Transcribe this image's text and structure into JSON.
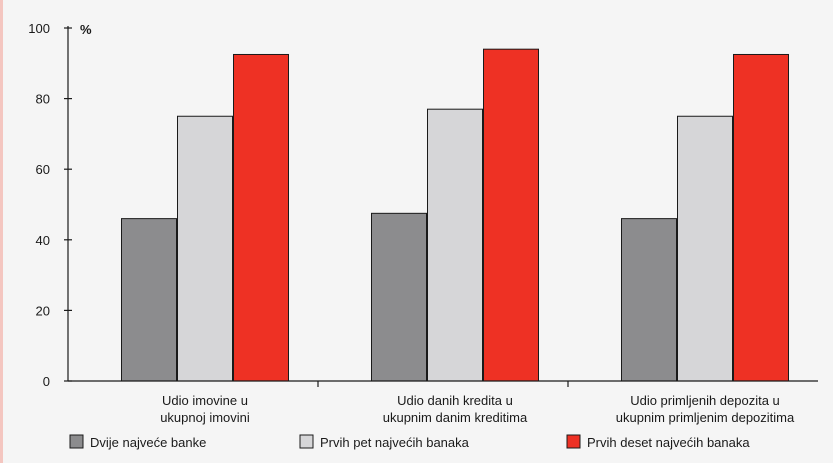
{
  "chart_data": {
    "type": "bar",
    "unit_label": "%",
    "ylim": [
      0,
      100
    ],
    "y_ticks": [
      0,
      20,
      40,
      60,
      80,
      100
    ],
    "grid": false,
    "legend_placement": "bottom",
    "categories": [
      [
        "Udio imovine u",
        "ukupnoj imovini"
      ],
      [
        "Udio danih kredita u",
        "ukupnim danim kreditima"
      ],
      [
        "Udio primljenih depozita u",
        "ukupnim primljenim depozitima"
      ]
    ],
    "series": [
      {
        "name": "Dvije najveće banke",
        "color": "#8c8c8e",
        "values": [
          46,
          47.5,
          46
        ]
      },
      {
        "name": "Prvih pet najvećih banaka",
        "color": "#d6d6d8",
        "values": [
          75,
          77,
          75
        ]
      },
      {
        "name": "Prvih deset najvećih banaka",
        "color": "#ee3124",
        "values": [
          92.5,
          94,
          92.5
        ]
      }
    ],
    "colors": {
      "background": "#f5f5f5",
      "left_accent": "#f4c6c0",
      "axis": "#1a1a1a"
    }
  }
}
